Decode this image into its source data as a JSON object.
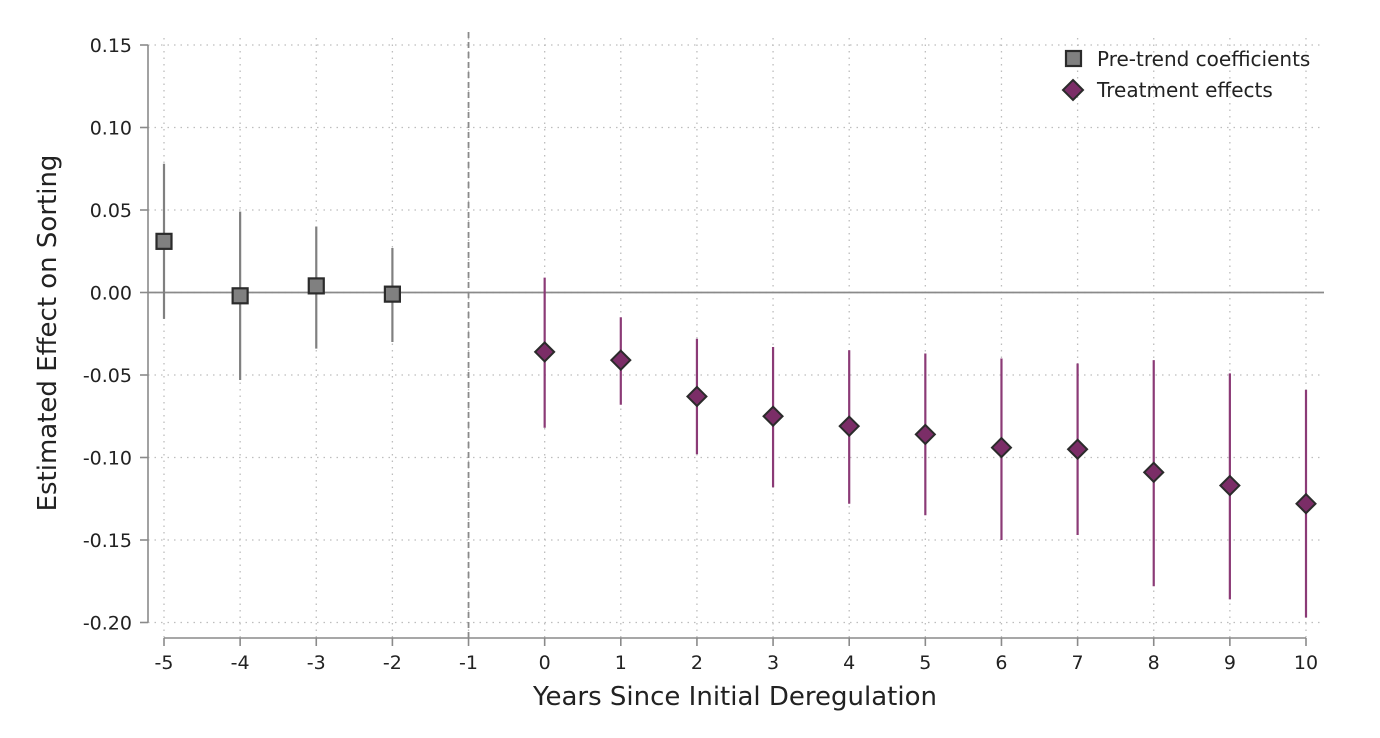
{
  "chart_data": {
    "type": "scatter",
    "title": "",
    "xlabel": "Years Since Initial Deregulation",
    "ylabel": "Estimated Effect on Sorting",
    "xlim": [
      -5.2,
      10.2
    ],
    "ylim": [
      -0.21,
      0.155
    ],
    "x_ticks": [
      -5,
      -4,
      -3,
      -2,
      -1,
      0,
      1,
      2,
      3,
      4,
      5,
      6,
      7,
      8,
      9,
      10
    ],
    "x_tick_labels": [
      "-5",
      "-4",
      "-3",
      "-2",
      "-1",
      "0",
      "1",
      "2",
      "3",
      "4",
      "5",
      "6",
      "7",
      "8",
      "9",
      "10"
    ],
    "y_ticks": [
      -0.2,
      -0.15,
      -0.1,
      -0.05,
      0.0,
      0.05,
      0.1,
      0.15
    ],
    "y_tick_labels": [
      "-0.20",
      "-0.15",
      "-0.10",
      "-0.05",
      "0.00",
      "0.05",
      "0.10",
      "0.15"
    ],
    "grid": true,
    "reference_lines": {
      "horizontal_y": 0.0,
      "vertical_dashed_x": -1
    },
    "legend_position": "top-right",
    "series": [
      {
        "name": "Pre-trend coefficients",
        "marker": "square",
        "color": "#808080",
        "points": [
          {
            "x": -5,
            "y": 0.031,
            "lo": -0.016,
            "hi": 0.078
          },
          {
            "x": -4,
            "y": -0.002,
            "lo": -0.053,
            "hi": 0.049
          },
          {
            "x": -3,
            "y": 0.004,
            "lo": -0.034,
            "hi": 0.04
          },
          {
            "x": -2,
            "y": -0.001,
            "lo": -0.03,
            "hi": 0.027
          }
        ]
      },
      {
        "name": "Treatment effects",
        "marker": "diamond",
        "color": "#7b2d67",
        "points": [
          {
            "x": 0,
            "y": -0.036,
            "lo": -0.082,
            "hi": 0.009
          },
          {
            "x": 1,
            "y": -0.041,
            "lo": -0.068,
            "hi": -0.015
          },
          {
            "x": 2,
            "y": -0.063,
            "lo": -0.098,
            "hi": -0.028
          },
          {
            "x": 3,
            "y": -0.075,
            "lo": -0.118,
            "hi": -0.033
          },
          {
            "x": 4,
            "y": -0.081,
            "lo": -0.128,
            "hi": -0.035
          },
          {
            "x": 5,
            "y": -0.086,
            "lo": -0.135,
            "hi": -0.037
          },
          {
            "x": 6,
            "y": -0.094,
            "lo": -0.15,
            "hi": -0.04
          },
          {
            "x": 7,
            "y": -0.095,
            "lo": -0.147,
            "hi": -0.043
          },
          {
            "x": 8,
            "y": -0.109,
            "lo": -0.178,
            "hi": -0.041
          },
          {
            "x": 9,
            "y": -0.117,
            "lo": -0.186,
            "hi": -0.049
          },
          {
            "x": 10,
            "y": -0.128,
            "lo": -0.197,
            "hi": -0.059
          }
        ]
      }
    ]
  },
  "colors": {
    "pretrend_fill": "#808080",
    "treatment_fill": "#7b2d67",
    "marker_edge": "#2b2b2b",
    "pretrend_errorbar": "#808080",
    "treatment_errorbar": "#8b3a76",
    "axis": "#8a8a8a",
    "zero_line": "#8a8a8a",
    "grid": "#bdbdbd"
  }
}
